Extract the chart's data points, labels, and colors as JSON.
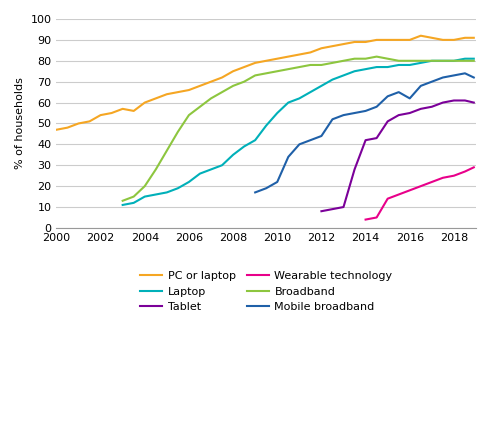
{
  "title": "",
  "ylabel": "% of households",
  "ylim": [
    0,
    100
  ],
  "xlim": [
    2000,
    2019
  ],
  "yticks": [
    0,
    10,
    20,
    30,
    40,
    50,
    60,
    70,
    80,
    90,
    100
  ],
  "xticks": [
    2000,
    2002,
    2004,
    2006,
    2008,
    2010,
    2012,
    2014,
    2016,
    2018
  ],
  "grid_color": "#cccccc",
  "background_color": "#ffffff",
  "series": {
    "PC or laptop": {
      "color": "#f5a623",
      "data_x": [
        2000,
        2000.5,
        2001,
        2001.5,
        2002,
        2002.5,
        2003,
        2003.5,
        2004,
        2004.5,
        2005,
        2005.5,
        2006,
        2006.5,
        2007,
        2007.5,
        2008,
        2008.5,
        2009,
        2009.5,
        2010,
        2010.5,
        2011,
        2011.5,
        2012,
        2012.5,
        2013,
        2013.5,
        2014,
        2014.5,
        2015,
        2015.5,
        2016,
        2016.5,
        2017,
        2017.5,
        2018,
        2018.5,
        2018.9
      ],
      "data_y": [
        47,
        48,
        50,
        51,
        54,
        55,
        57,
        56,
        60,
        62,
        64,
        65,
        66,
        68,
        70,
        72,
        75,
        77,
        79,
        80,
        81,
        82,
        83,
        84,
        86,
        87,
        88,
        89,
        89,
        90,
        90,
        90,
        90,
        92,
        91,
        90,
        90,
        91,
        91
      ]
    },
    "Laptop": {
      "color": "#00b0b9",
      "data_x": [
        2003,
        2003.5,
        2004,
        2004.5,
        2005,
        2005.5,
        2006,
        2006.5,
        2007,
        2007.5,
        2008,
        2008.5,
        2009,
        2009.5,
        2010,
        2010.5,
        2011,
        2011.5,
        2012,
        2012.5,
        2013,
        2013.5,
        2014,
        2014.5,
        2015,
        2015.5,
        2016,
        2016.5,
        2017,
        2017.5,
        2018,
        2018.5,
        2018.9
      ],
      "data_y": [
        11,
        12,
        15,
        16,
        17,
        19,
        22,
        26,
        28,
        30,
        35,
        39,
        42,
        49,
        55,
        60,
        62,
        65,
        68,
        71,
        73,
        75,
        76,
        77,
        77,
        78,
        78,
        79,
        80,
        80,
        80,
        81,
        81
      ]
    },
    "Tablet": {
      "color": "#7b0099",
      "data_x": [
        2012,
        2012.5,
        2013,
        2013.5,
        2014,
        2014.5,
        2015,
        2015.5,
        2016,
        2016.5,
        2017,
        2017.5,
        2018,
        2018.5,
        2018.9
      ],
      "data_y": [
        8,
        9,
        10,
        28,
        42,
        43,
        51,
        54,
        55,
        57,
        58,
        60,
        61,
        61,
        60
      ]
    },
    "Wearable technology": {
      "color": "#e8008a",
      "data_x": [
        2014,
        2014.5,
        2015,
        2015.5,
        2016,
        2016.5,
        2017,
        2017.5,
        2018,
        2018.5,
        2018.9
      ],
      "data_y": [
        4,
        5,
        14,
        16,
        18,
        20,
        22,
        24,
        25,
        27,
        29
      ]
    },
    "Broadband": {
      "color": "#8dc63f",
      "data_x": [
        2003,
        2003.5,
        2004,
        2004.5,
        2005,
        2005.5,
        2006,
        2006.5,
        2007,
        2007.5,
        2008,
        2008.5,
        2009,
        2009.5,
        2010,
        2010.5,
        2011,
        2011.5,
        2012,
        2012.5,
        2013,
        2013.5,
        2014,
        2014.5,
        2015,
        2015.5,
        2016,
        2016.5,
        2017,
        2017.5,
        2018,
        2018.5,
        2018.9
      ],
      "data_y": [
        13,
        15,
        20,
        28,
        37,
        46,
        54,
        58,
        62,
        65,
        68,
        70,
        73,
        74,
        75,
        76,
        77,
        78,
        78,
        79,
        80,
        81,
        81,
        82,
        81,
        80,
        80,
        80,
        80,
        80,
        80,
        80,
        80
      ]
    },
    "Mobile broadband": {
      "color": "#1f60a8",
      "data_x": [
        2009,
        2009.5,
        2010,
        2010.5,
        2011,
        2011.5,
        2012,
        2012.5,
        2013,
        2013.5,
        2014,
        2014.5,
        2015,
        2015.5,
        2016,
        2016.5,
        2017,
        2017.5,
        2018,
        2018.5,
        2018.9
      ],
      "data_y": [
        17,
        19,
        22,
        34,
        40,
        42,
        44,
        52,
        54,
        55,
        56,
        58,
        63,
        65,
        62,
        68,
        70,
        72,
        73,
        74,
        72
      ]
    }
  },
  "legend_order": [
    "PC or laptop",
    "Laptop",
    "Tablet",
    "Wearable technology",
    "Broadband",
    "Mobile broadband"
  ],
  "legend_ncol": 2,
  "figsize": [
    4.91,
    4.25
  ],
  "dpi": 100
}
